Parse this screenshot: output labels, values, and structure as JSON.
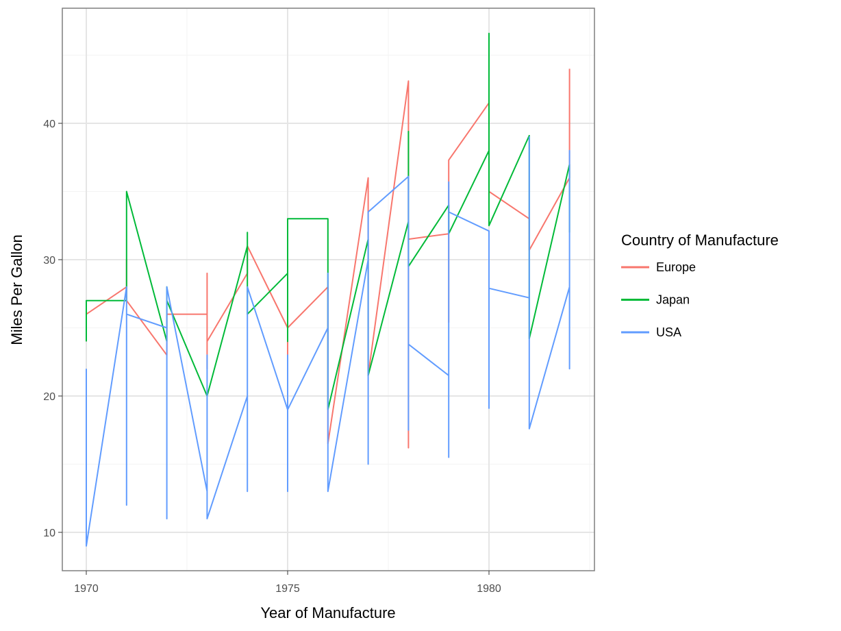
{
  "chart_data": {
    "type": "line",
    "title": "",
    "xlabel": "Year of Manufacture",
    "ylabel": "Miles Per Gallon",
    "xlim": [
      1968.8,
      1982.6
    ],
    "ylim": [
      7.3,
      48.5
    ],
    "x_ticks": [
      1970,
      1975,
      1980
    ],
    "x_tick_labels": [
      "1970",
      "1975",
      "1980"
    ],
    "y_ticks": [
      10,
      20,
      30,
      40
    ],
    "y_tick_labels": [
      "10",
      "20",
      "30",
      "40"
    ],
    "grid": true,
    "legend": {
      "title": "Country of Manufacture",
      "placement": "right"
    },
    "x": [
      1970,
      1971,
      1972,
      1973,
      1974,
      1975,
      1976,
      1977,
      1978,
      1979,
      1980,
      1981,
      1982
    ],
    "series": [
      {
        "name": "Europe",
        "color": "#F8766D",
        "values_per_x": [
          [
            24,
            26
          ],
          [
            28,
            30,
            27
          ],
          [
            23,
            26
          ],
          [
            26,
            29,
            22,
            24
          ],
          [
            29,
            31
          ],
          [
            25,
            22,
            25
          ],
          [
            28,
            16.5
          ],
          [
            36,
            21.5
          ],
          [
            43.1,
            16.2,
            31.5
          ],
          [
            31.9,
            25.4,
            37.3
          ],
          [
            41.5,
            35
          ],
          [
            33,
            30.7
          ],
          [
            36,
            44
          ]
        ]
      },
      {
        "name": "Japan",
        "color": "#00BA38",
        "values_per_x": [
          [
            24,
            27
          ],
          [
            27,
            35
          ],
          [
            24,
            28,
            27
          ],
          [
            20
          ],
          [
            31,
            32,
            26
          ],
          [
            29,
            24,
            33
          ],
          [
            33,
            19
          ],
          [
            31.5,
            21.5
          ],
          [
            32.8,
            39.4,
            29.5
          ],
          [
            34,
            31.9
          ],
          [
            38,
            46.6,
            32.5
          ],
          [
            39.1,
            24.2
          ],
          [
            37,
            32
          ]
        ]
      },
      {
        "name": "USA",
        "color": "#619CFF",
        "values_per_x": [
          [
            22,
            9
          ],
          [
            28,
            12,
            26
          ],
          [
            25,
            11,
            28
          ],
          [
            13,
            23,
            11
          ],
          [
            20,
            13,
            28
          ],
          [
            19,
            13,
            23,
            19
          ],
          [
            25,
            29,
            13
          ],
          [
            30,
            15,
            33.5
          ],
          [
            36.1,
            17.5,
            23.8
          ],
          [
            21.5,
            15.5,
            35.7,
            33.5
          ],
          [
            32.1,
            19.1,
            27.9
          ],
          [
            27.2,
            39,
            17.6
          ],
          [
            28,
            22,
            38,
            31
          ]
        ]
      }
    ]
  }
}
